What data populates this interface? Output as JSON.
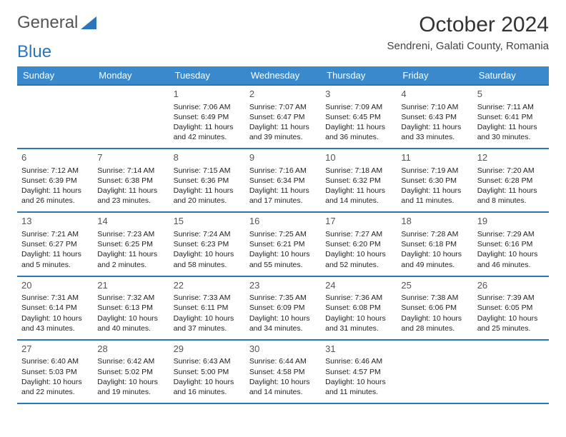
{
  "logo": {
    "word1": "General",
    "word2": "Blue"
  },
  "title": "October 2024",
  "location": "Sendreni, Galati County, Romania",
  "colors": {
    "header_bg": "#3a89cc",
    "border": "#2976b8",
    "logo_blue": "#2976b8",
    "text": "#333333"
  },
  "weekdays": [
    "Sunday",
    "Monday",
    "Tuesday",
    "Wednesday",
    "Thursday",
    "Friday",
    "Saturday"
  ],
  "weeks": [
    [
      null,
      null,
      {
        "n": "1",
        "sr": "7:06 AM",
        "ss": "6:49 PM",
        "dl": "11 hours and 42 minutes."
      },
      {
        "n": "2",
        "sr": "7:07 AM",
        "ss": "6:47 PM",
        "dl": "11 hours and 39 minutes."
      },
      {
        "n": "3",
        "sr": "7:09 AM",
        "ss": "6:45 PM",
        "dl": "11 hours and 36 minutes."
      },
      {
        "n": "4",
        "sr": "7:10 AM",
        "ss": "6:43 PM",
        "dl": "11 hours and 33 minutes."
      },
      {
        "n": "5",
        "sr": "7:11 AM",
        "ss": "6:41 PM",
        "dl": "11 hours and 30 minutes."
      }
    ],
    [
      {
        "n": "6",
        "sr": "7:12 AM",
        "ss": "6:39 PM",
        "dl": "11 hours and 26 minutes."
      },
      {
        "n": "7",
        "sr": "7:14 AM",
        "ss": "6:38 PM",
        "dl": "11 hours and 23 minutes."
      },
      {
        "n": "8",
        "sr": "7:15 AM",
        "ss": "6:36 PM",
        "dl": "11 hours and 20 minutes."
      },
      {
        "n": "9",
        "sr": "7:16 AM",
        "ss": "6:34 PM",
        "dl": "11 hours and 17 minutes."
      },
      {
        "n": "10",
        "sr": "7:18 AM",
        "ss": "6:32 PM",
        "dl": "11 hours and 14 minutes."
      },
      {
        "n": "11",
        "sr": "7:19 AM",
        "ss": "6:30 PM",
        "dl": "11 hours and 11 minutes."
      },
      {
        "n": "12",
        "sr": "7:20 AM",
        "ss": "6:28 PM",
        "dl": "11 hours and 8 minutes."
      }
    ],
    [
      {
        "n": "13",
        "sr": "7:21 AM",
        "ss": "6:27 PM",
        "dl": "11 hours and 5 minutes."
      },
      {
        "n": "14",
        "sr": "7:23 AM",
        "ss": "6:25 PM",
        "dl": "11 hours and 2 minutes."
      },
      {
        "n": "15",
        "sr": "7:24 AM",
        "ss": "6:23 PM",
        "dl": "10 hours and 58 minutes."
      },
      {
        "n": "16",
        "sr": "7:25 AM",
        "ss": "6:21 PM",
        "dl": "10 hours and 55 minutes."
      },
      {
        "n": "17",
        "sr": "7:27 AM",
        "ss": "6:20 PM",
        "dl": "10 hours and 52 minutes."
      },
      {
        "n": "18",
        "sr": "7:28 AM",
        "ss": "6:18 PM",
        "dl": "10 hours and 49 minutes."
      },
      {
        "n": "19",
        "sr": "7:29 AM",
        "ss": "6:16 PM",
        "dl": "10 hours and 46 minutes."
      }
    ],
    [
      {
        "n": "20",
        "sr": "7:31 AM",
        "ss": "6:14 PM",
        "dl": "10 hours and 43 minutes."
      },
      {
        "n": "21",
        "sr": "7:32 AM",
        "ss": "6:13 PM",
        "dl": "10 hours and 40 minutes."
      },
      {
        "n": "22",
        "sr": "7:33 AM",
        "ss": "6:11 PM",
        "dl": "10 hours and 37 minutes."
      },
      {
        "n": "23",
        "sr": "7:35 AM",
        "ss": "6:09 PM",
        "dl": "10 hours and 34 minutes."
      },
      {
        "n": "24",
        "sr": "7:36 AM",
        "ss": "6:08 PM",
        "dl": "10 hours and 31 minutes."
      },
      {
        "n": "25",
        "sr": "7:38 AM",
        "ss": "6:06 PM",
        "dl": "10 hours and 28 minutes."
      },
      {
        "n": "26",
        "sr": "7:39 AM",
        "ss": "6:05 PM",
        "dl": "10 hours and 25 minutes."
      }
    ],
    [
      {
        "n": "27",
        "sr": "6:40 AM",
        "ss": "5:03 PM",
        "dl": "10 hours and 22 minutes."
      },
      {
        "n": "28",
        "sr": "6:42 AM",
        "ss": "5:02 PM",
        "dl": "10 hours and 19 minutes."
      },
      {
        "n": "29",
        "sr": "6:43 AM",
        "ss": "5:00 PM",
        "dl": "10 hours and 16 minutes."
      },
      {
        "n": "30",
        "sr": "6:44 AM",
        "ss": "4:58 PM",
        "dl": "10 hours and 14 minutes."
      },
      {
        "n": "31",
        "sr": "6:46 AM",
        "ss": "4:57 PM",
        "dl": "10 hours and 11 minutes."
      },
      null,
      null
    ]
  ],
  "labels": {
    "sunrise": "Sunrise:",
    "sunset": "Sunset:",
    "daylight": "Daylight:"
  }
}
